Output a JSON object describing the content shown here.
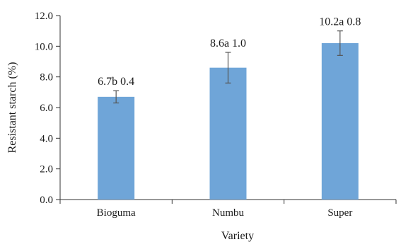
{
  "chart_data": {
    "type": "bar",
    "categories": [
      "Bioguma",
      "Numbu",
      "Super"
    ],
    "values": [
      6.7,
      8.6,
      10.2
    ],
    "errors": [
      0.4,
      1.0,
      0.8
    ],
    "data_labels": [
      "6.7b 0.4",
      "8.6a 1.0",
      "10.2a 0.8"
    ],
    "xlabel": "Variety",
    "ylabel": "Resistant starch (%)",
    "ylim": [
      0,
      12
    ],
    "yticks": [
      "0.0",
      "2.0",
      "4.0",
      "6.0",
      "8.0",
      "10.0",
      "12.0"
    ],
    "grid": false,
    "legend": "none",
    "bar_color": "#6fa5d8",
    "error_color": "#555555"
  }
}
